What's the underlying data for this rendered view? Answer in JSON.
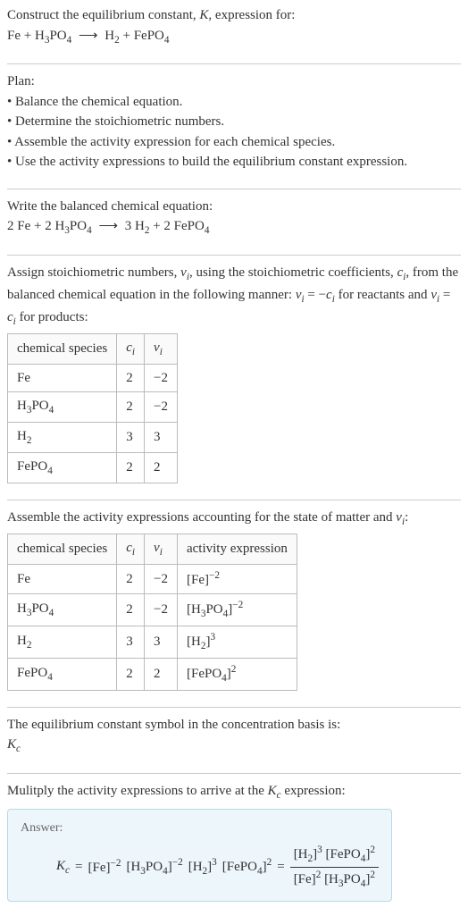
{
  "intro": {
    "line1_prefix": "Construct the equilibrium constant, ",
    "K": "K",
    "line1_suffix": ", expression for:",
    "equation_lhs1": "Fe",
    "plus": " + ",
    "equation_lhs2_pre": "H",
    "equation_lhs2_sub": "3",
    "equation_lhs2_mid": "PO",
    "equation_lhs2_sub2": "4",
    "arrow": "⟶",
    "equation_rhs1_pre": "H",
    "equation_rhs1_sub": "2",
    "equation_rhs2_pre": "FePO",
    "equation_rhs2_sub": "4"
  },
  "plan": {
    "title": "Plan:",
    "bullets": [
      "• Balance the chemical equation.",
      "• Determine the stoichiometric numbers.",
      "• Assemble the activity expression for each chemical species.",
      "• Use the activity expressions to build the equilibrium constant expression."
    ]
  },
  "balanced": {
    "title": "Write the balanced chemical equation:",
    "c1": "2 Fe + 2 H",
    "c1_sub": "3",
    "c1b": "PO",
    "c1b_sub": "4",
    "arrow": "⟶",
    "c2": "3 H",
    "c2_sub": "2",
    "c3": " + 2 FePO",
    "c3_sub": "4"
  },
  "assign": {
    "text_pre": "Assign stoichiometric numbers, ",
    "nu": "ν",
    "sub_i": "i",
    "text_mid1": ", using the stoichiometric coefficients, ",
    "c": "c",
    "text_mid2": ", from the balanced chemical equation in the following manner: ",
    "eq1_nu": "ν",
    "eq1": " = −",
    "eq1_c": "c",
    "text_mid3": " for reactants and ",
    "eq2": " = ",
    "text_end": " for products:",
    "headers": {
      "species": "chemical species",
      "ci": "c",
      "ci_sub": "i",
      "nui": "ν",
      "nui_sub": "i"
    },
    "rows": [
      {
        "species_html": "Fe",
        "ci": "2",
        "nui": "−2"
      },
      {
        "species_html": "H3PO4",
        "ci": "2",
        "nui": "−2"
      },
      {
        "species_html": "H2",
        "ci": "3",
        "nui": "3"
      },
      {
        "species_html": "FePO4",
        "ci": "2",
        "nui": "2"
      }
    ]
  },
  "activity": {
    "title_pre": "Assemble the activity expressions accounting for the state of matter and ",
    "title_suffix": ":",
    "headers": {
      "species": "chemical species",
      "activity": "activity expression"
    },
    "rows": [
      {
        "ci": "2",
        "nui": "−2",
        "base": "[Fe]",
        "exp": "−2"
      },
      {
        "ci": "2",
        "nui": "−2",
        "exp": "−2"
      },
      {
        "ci": "3",
        "nui": "3",
        "base": "[H",
        "exp": "3"
      },
      {
        "ci": "2",
        "nui": "2",
        "base": "[FePO",
        "exp": "2"
      }
    ]
  },
  "symbol": {
    "line1": "The equilibrium constant symbol in the concentration basis is:",
    "Kc_K": "K",
    "Kc_c": "c"
  },
  "multiply": {
    "line_pre": "Mulitply the activity expressions to arrive at the ",
    "line_suffix": " expression:"
  },
  "answer": {
    "label": "Answer:",
    "eq_equals": " = ",
    "terms": {
      "Fe": "[Fe]",
      "Fe_exp": "−2",
      "H3PO4_open": "[H",
      "H3PO4_close": "]",
      "H3PO4_exp": "−2",
      "H2_open": "[H",
      "H2_close": "]",
      "H2_exp": "3",
      "FePO4_open": "[FePO",
      "FePO4_close": "]",
      "FePO4_exp": "2",
      "Fe_pos_exp": "2",
      "H3PO4_pos_exp": "2"
    }
  },
  "labels": {
    "sub3": "3",
    "sub4": "4",
    "sub2": "2",
    "closebr": "]",
    "PO": "PO"
  }
}
